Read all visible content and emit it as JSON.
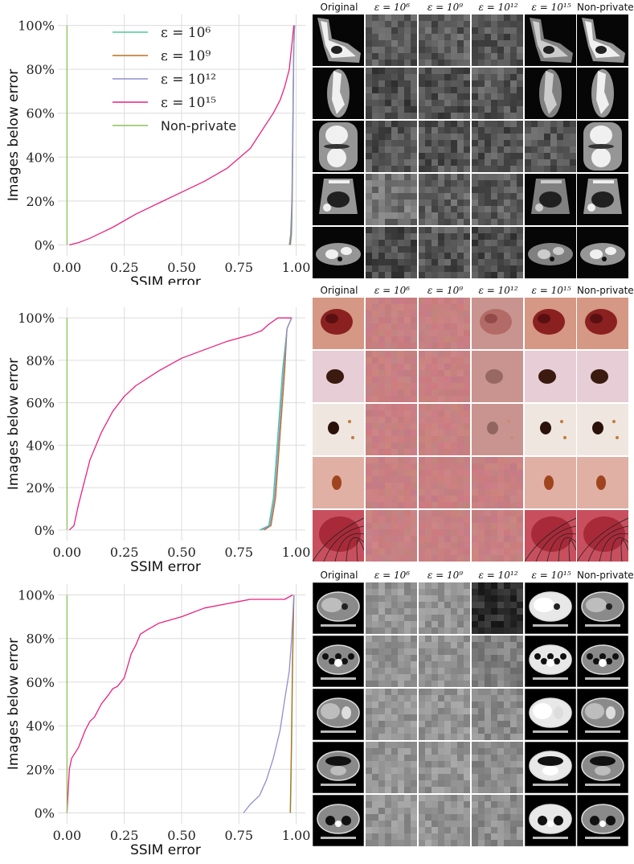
{
  "column_headers": [
    "Original",
    "ε = 10⁶",
    "ε = 10⁹",
    "ε = 10¹²",
    "ε = 10¹⁵",
    "Non-private"
  ],
  "legend": [
    {
      "label": "ε = 10⁶",
      "color": "#4fc79a"
    },
    {
      "label": "ε = 10⁹",
      "color": "#b9701e"
    },
    {
      "label": "ε = 10¹²",
      "color": "#8f8fd0"
    },
    {
      "label": "ε = 10¹⁵",
      "color": "#e8227e"
    },
    {
      "label": "Non-private",
      "color": "#8cc25a"
    }
  ],
  "chart_data": [
    {
      "type": "line",
      "xlabel": "SSIM error",
      "ylabel": "Images below error",
      "xlim": [
        -0.04,
        1.04
      ],
      "ylim": [
        -0.05,
        1.05
      ],
      "xticks": [
        "0.00",
        "0.25",
        "0.50",
        "0.75",
        "1.00"
      ],
      "yticks": [
        "0%",
        "20%",
        "40%",
        "60%",
        "80%",
        "100%"
      ],
      "grid": true,
      "legend_position": "top-left",
      "series": [
        {
          "name": "ε = 10⁶",
          "color": "#4fc79a",
          "x": [
            0.975,
            0.98,
            0.983,
            0.986,
            0.99,
            0.993
          ],
          "y": [
            0.0,
            0.05,
            0.2,
            0.5,
            0.9,
            1.0
          ]
        },
        {
          "name": "ε = 10⁹",
          "color": "#b9701e",
          "x": [
            0.973,
            0.978,
            0.982,
            0.985,
            0.989,
            0.993
          ],
          "y": [
            0.0,
            0.05,
            0.2,
            0.5,
            0.9,
            1.0
          ]
        },
        {
          "name": "ε = 10¹²",
          "color": "#8f8fd0",
          "x": [
            0.97,
            0.976,
            0.981,
            0.985,
            0.989,
            0.993
          ],
          "y": [
            0.0,
            0.05,
            0.2,
            0.5,
            0.9,
            1.0
          ]
        },
        {
          "name": "ε = 10¹⁵",
          "color": "#e8227e",
          "x": [
            0.01,
            0.05,
            0.1,
            0.2,
            0.3,
            0.4,
            0.5,
            0.6,
            0.7,
            0.8,
            0.85,
            0.9,
            0.93,
            0.95,
            0.97,
            0.99
          ],
          "y": [
            0.0,
            0.01,
            0.03,
            0.08,
            0.14,
            0.19,
            0.24,
            0.29,
            0.35,
            0.44,
            0.52,
            0.6,
            0.66,
            0.72,
            0.8,
            1.0
          ]
        },
        {
          "name": "Non-private",
          "color": "#8cc25a",
          "x": [
            0.0,
            0.0
          ],
          "y": [
            0.0,
            1.0
          ]
        }
      ]
    },
    {
      "type": "line",
      "xlabel": "SSIM error",
      "ylabel": "Images below error",
      "xlim": [
        -0.04,
        1.04
      ],
      "ylim": [
        -0.05,
        1.05
      ],
      "xticks": [
        "0.00",
        "0.25",
        "0.50",
        "0.75",
        "1.00"
      ],
      "yticks": [
        "0%",
        "20%",
        "40%",
        "60%",
        "80%",
        "100%"
      ],
      "grid": true,
      "series": [
        {
          "name": "ε = 10⁶",
          "color": "#4fc79a",
          "x": [
            0.84,
            0.88,
            0.9,
            0.92,
            0.94,
            0.96,
            0.98
          ],
          "y": [
            0.0,
            0.02,
            0.15,
            0.45,
            0.75,
            0.95,
            1.0
          ]
        },
        {
          "name": "ε = 10⁹",
          "color": "#b9701e",
          "x": [
            0.86,
            0.89,
            0.91,
            0.93,
            0.95,
            0.96,
            0.98
          ],
          "y": [
            0.0,
            0.02,
            0.15,
            0.45,
            0.75,
            0.95,
            1.0
          ]
        },
        {
          "name": "ε = 10¹²",
          "color": "#8f8fd0",
          "x": [
            0.85,
            0.885,
            0.905,
            0.925,
            0.945,
            0.96,
            0.98
          ],
          "y": [
            0.0,
            0.02,
            0.15,
            0.45,
            0.75,
            0.95,
            1.0
          ]
        },
        {
          "name": "ε = 10¹⁵",
          "color": "#e8227e",
          "x": [
            0.01,
            0.03,
            0.05,
            0.1,
            0.15,
            0.2,
            0.25,
            0.3,
            0.4,
            0.5,
            0.6,
            0.7,
            0.8,
            0.85,
            0.88,
            0.92,
            0.95,
            0.98
          ],
          "y": [
            0.0,
            0.02,
            0.12,
            0.33,
            0.46,
            0.56,
            0.63,
            0.68,
            0.75,
            0.81,
            0.85,
            0.89,
            0.92,
            0.94,
            0.97,
            1.0,
            1.0,
            1.0
          ]
        },
        {
          "name": "Non-private",
          "color": "#8cc25a",
          "x": [
            0.0,
            0.0
          ],
          "y": [
            0.0,
            1.0
          ]
        }
      ]
    },
    {
      "type": "line",
      "xlabel": "SSIM error",
      "ylabel": "Images below error",
      "xlim": [
        -0.04,
        1.04
      ],
      "ylim": [
        -0.05,
        1.05
      ],
      "xticks": [
        "0.00",
        "0.25",
        "0.50",
        "0.75",
        "1.00"
      ],
      "yticks": [
        "0%",
        "20%",
        "40%",
        "60%",
        "80%",
        "100%"
      ],
      "grid": true,
      "series": [
        {
          "name": "ε = 10⁶",
          "color": "#4fc79a",
          "x": [
            0.975,
            0.98,
            0.985,
            0.99
          ],
          "y": [
            0.0,
            0.3,
            0.7,
            1.0
          ]
        },
        {
          "name": "ε = 10⁹",
          "color": "#b9701e",
          "x": [
            0.974,
            0.979,
            0.984,
            0.99
          ],
          "y": [
            0.0,
            0.3,
            0.7,
            1.0
          ]
        },
        {
          "name": "ε = 10¹²",
          "color": "#8f8fd0",
          "x": [
            0.77,
            0.8,
            0.84,
            0.87,
            0.9,
            0.93,
            0.95,
            0.97,
            0.98,
            0.99
          ],
          "y": [
            0.0,
            0.04,
            0.08,
            0.15,
            0.25,
            0.38,
            0.52,
            0.65,
            0.8,
            1.0
          ]
        },
        {
          "name": "ε = 10¹⁵",
          "color": "#e8227e",
          "x": [
            0.0,
            0.005,
            0.01,
            0.02,
            0.05,
            0.08,
            0.1,
            0.12,
            0.15,
            0.18,
            0.2,
            0.22,
            0.25,
            0.28,
            0.3,
            0.32,
            0.35,
            0.4,
            0.5,
            0.6,
            0.7,
            0.75,
            0.8,
            0.95,
            0.985
          ],
          "y": [
            0.0,
            0.1,
            0.2,
            0.25,
            0.3,
            0.38,
            0.42,
            0.44,
            0.5,
            0.54,
            0.57,
            0.58,
            0.62,
            0.73,
            0.77,
            0.82,
            0.84,
            0.87,
            0.9,
            0.94,
            0.96,
            0.97,
            0.98,
            0.98,
            1.0
          ]
        },
        {
          "name": "Non-private",
          "color": "#8cc25a",
          "x": [
            0.0,
            0.0
          ],
          "y": [
            0.0,
            1.0
          ]
        }
      ]
    }
  ],
  "image_grid": [
    {
      "rows": [
        {
          "kind": "mri-ankle",
          "orig_bg": "#050505",
          "noise": [
            0.35,
            0.36,
            0.33,
            "recon-noisy"
          ]
        },
        {
          "kind": "mri-spine",
          "orig_bg": "#050505",
          "noise": [
            0.3,
            0.32,
            0.34,
            "recon-sparse"
          ]
        },
        {
          "kind": "mri-knee",
          "orig_bg": "#050505",
          "noise": [
            0.33,
            0.33,
            0.32,
            "noise"
          ]
        },
        {
          "kind": "ultrasound",
          "orig_bg": "#050505",
          "noise": [
            0.45,
            0.38,
            0.36,
            "recon-noisy"
          ]
        },
        {
          "kind": "ct-abdomen",
          "orig_bg": "#050505",
          "noise": [
            0.3,
            0.32,
            0.3,
            "recon"
          ]
        }
      ]
    },
    {
      "rows": [
        {
          "kind": "lesion-large",
          "bg": "#d49884",
          "lesion": "#8a2020"
        },
        {
          "kind": "lesion-dark",
          "bg": "#e6cdd6",
          "lesion": "#3b1a0f"
        },
        {
          "kind": "lesion-small",
          "bg": "#efe6e0",
          "lesion": "#2a120a"
        },
        {
          "kind": "lesion-faint",
          "bg": "#e0b0a4",
          "lesion": "#a0441f"
        },
        {
          "kind": "lesion-hair",
          "bg": "#c8505e",
          "lesion": "#a02030"
        }
      ]
    },
    {
      "rows": [
        {
          "kind": "ct-liver"
        },
        {
          "kind": "ct-bowel"
        },
        {
          "kind": "ct-kidney"
        },
        {
          "kind": "ct-abdomen2"
        },
        {
          "kind": "ct-pelvis"
        }
      ]
    }
  ]
}
